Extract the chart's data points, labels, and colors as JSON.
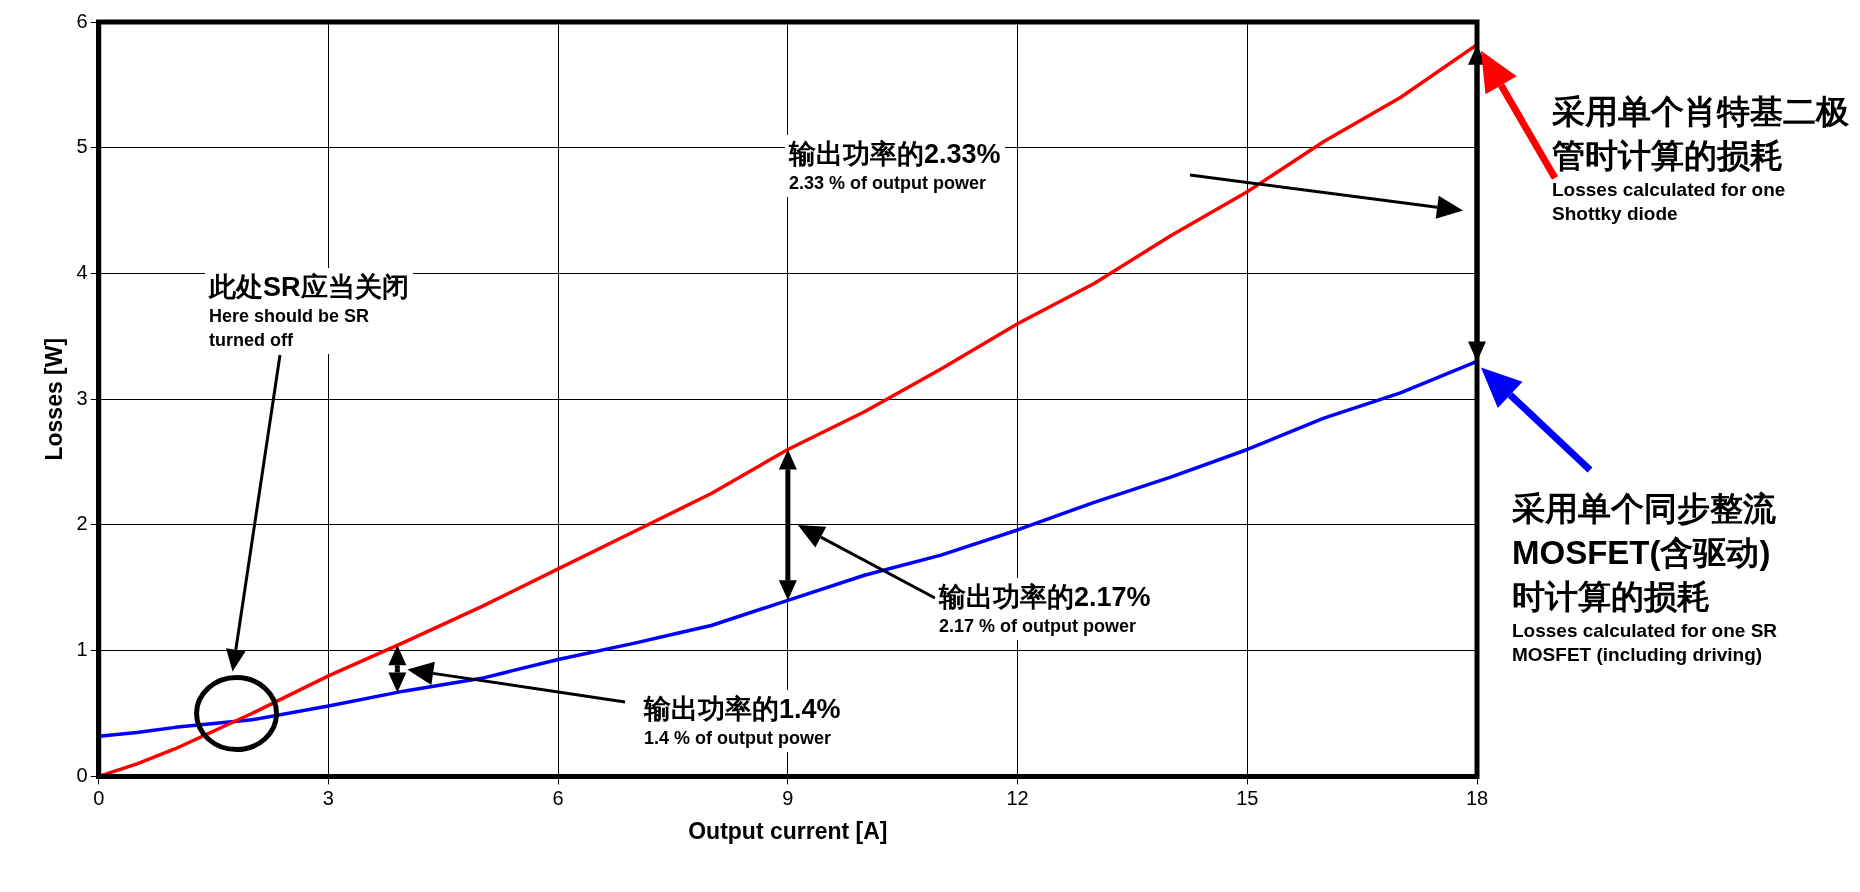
{
  "chart_data": {
    "type": "line",
    "xlabel": "Output current [A]",
    "ylabel": "Losses [W]",
    "xlim": [
      0,
      18
    ],
    "xticks": [
      0,
      3,
      6,
      9,
      12,
      15,
      18
    ],
    "ylim": [
      0,
      6
    ],
    "yticks": [
      0,
      1,
      2,
      3,
      4,
      5,
      6
    ],
    "grid": true,
    "legend": "right",
    "marker": "none",
    "line_style": "solid",
    "series": [
      {
        "name": "采用单个肖特基二极管时计算的损耗\nLosses calculated for one Shottky diode",
        "color": "#ff0000",
        "x": [
          0,
          0.5,
          1,
          2,
          3,
          4,
          5,
          6,
          7,
          8,
          9,
          10,
          11,
          12,
          13,
          14,
          15,
          16,
          17,
          18
        ],
        "values": [
          0,
          0.1,
          0.22,
          0.5,
          0.8,
          1.07,
          1.35,
          1.65,
          1.95,
          2.25,
          2.6,
          2.9,
          3.24,
          3.6,
          3.92,
          4.3,
          4.65,
          5.05,
          5.4,
          5.82
        ]
      },
      {
        "name": "采用单个同步整流MOSFET(含驱动)时计算的损耗\nLosses calculated for one SR MOSFET (including driving)",
        "color": "#0000ff",
        "x": [
          0,
          0.5,
          1,
          2,
          3,
          4,
          5,
          6,
          7,
          7.5,
          8,
          9,
          10,
          11,
          12,
          13,
          14,
          15,
          16,
          17,
          18
        ],
        "values": [
          0.32,
          0.35,
          0.39,
          0.45,
          0.56,
          0.68,
          0.78,
          0.93,
          1.06,
          1.13,
          1.2,
          1.4,
          1.6,
          1.76,
          1.96,
          2.18,
          2.38,
          2.6,
          2.85,
          3.05,
          3.3
        ]
      }
    ],
    "annotations": [
      "此处SR应当关闭\nHere should be SR turned off",
      "输出功率的1.4%\n1.4 % of output power",
      "输出功率的2.17%\n2.17 % of output power",
      "输出功率的2.33%\n2.33 % of output power"
    ]
  }
}
